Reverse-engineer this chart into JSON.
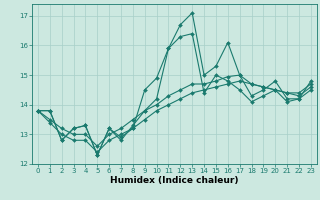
{
  "title": "",
  "xlabel": "Humidex (Indice chaleur)",
  "background_color": "#cce8e0",
  "line_color": "#1a7a6e",
  "grid_color": "#a8cfc8",
  "xlim": [
    -0.5,
    23.5
  ],
  "ylim": [
    12,
    17.4
  ],
  "yticks": [
    12,
    13,
    14,
    15,
    16,
    17
  ],
  "xticks": [
    0,
    1,
    2,
    3,
    4,
    5,
    6,
    7,
    8,
    9,
    10,
    11,
    12,
    13,
    14,
    15,
    16,
    17,
    18,
    19,
    20,
    21,
    22,
    23
  ],
  "series": [
    [
      13.8,
      13.8,
      12.8,
      13.2,
      13.3,
      12.3,
      13.2,
      12.9,
      13.2,
      14.5,
      14.9,
      15.9,
      16.7,
      17.1,
      15.0,
      15.3,
      16.1,
      15.0,
      14.3,
      14.5,
      14.8,
      14.2,
      14.2,
      14.8
    ],
    [
      13.8,
      13.8,
      12.8,
      13.2,
      13.3,
      12.3,
      13.2,
      12.8,
      13.3,
      13.8,
      14.2,
      15.9,
      16.3,
      16.4,
      14.4,
      15.0,
      14.8,
      14.5,
      14.1,
      14.3,
      14.5,
      14.1,
      14.2,
      14.5
    ],
    [
      13.8,
      13.5,
      13.2,
      13.0,
      13.0,
      12.6,
      13.0,
      13.2,
      13.5,
      13.8,
      14.0,
      14.3,
      14.5,
      14.7,
      14.7,
      14.8,
      14.95,
      15.0,
      14.7,
      14.6,
      14.5,
      14.4,
      14.4,
      14.7
    ],
    [
      13.8,
      13.4,
      13.0,
      12.8,
      12.8,
      12.4,
      12.8,
      13.0,
      13.2,
      13.5,
      13.8,
      14.0,
      14.2,
      14.4,
      14.5,
      14.6,
      14.7,
      14.8,
      14.7,
      14.6,
      14.5,
      14.4,
      14.3,
      14.6
    ]
  ]
}
